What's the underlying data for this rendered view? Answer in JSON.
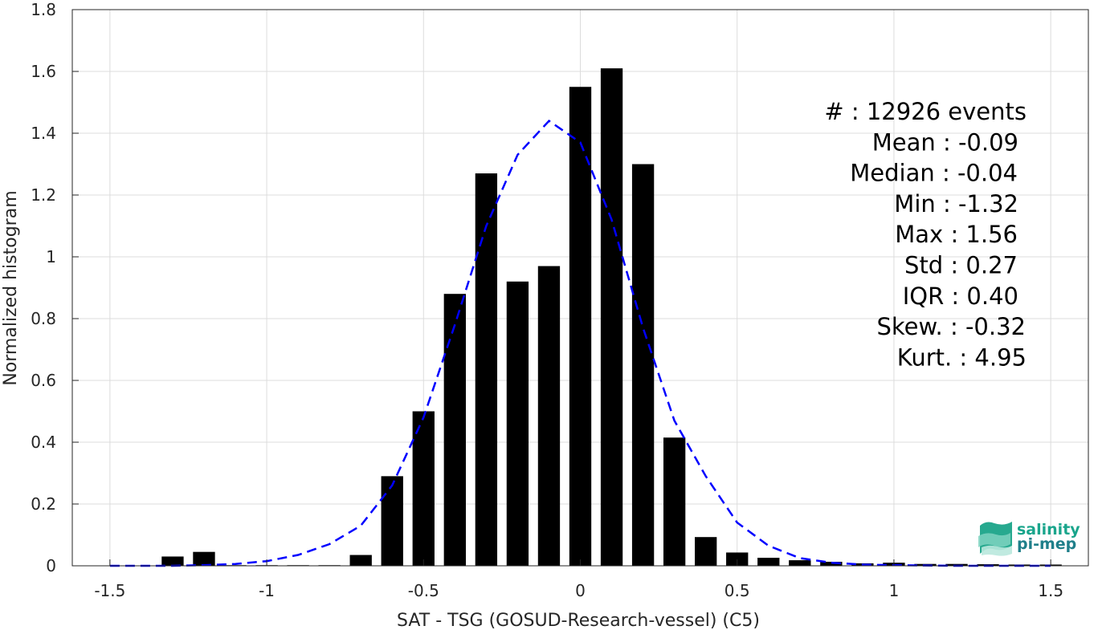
{
  "chart_data": {
    "type": "bar",
    "xlabel": "SAT - TSG (GOSUD-Research-vessel) (C5)",
    "ylabel": "Normalized histogram",
    "xlim": [
      -1.62,
      1.62
    ],
    "ylim": [
      0,
      1.8
    ],
    "xticks": [
      -1.5,
      -1,
      -0.5,
      0,
      0.5,
      1,
      1.5
    ],
    "xtick_labels": [
      "-1.5",
      "-1",
      "-0.5",
      "0",
      "0.5",
      "1",
      "1.5"
    ],
    "yticks": [
      0,
      0.2,
      0.4,
      0.6,
      0.8,
      1,
      1.2,
      1.4,
      1.6,
      1.8
    ],
    "ytick_labels": [
      "0",
      "0.2",
      "0.4",
      "0.6",
      "0.8",
      "1",
      "1.2",
      "1.4",
      "1.6",
      "1.8"
    ],
    "grid": true,
    "series": [
      {
        "kind": "bar",
        "color": "#000000",
        "x": [
          -1.3,
          -1.2,
          -1.1,
          -1.0,
          -0.9,
          -0.8,
          -0.7,
          -0.6,
          -0.5,
          -0.4,
          -0.3,
          -0.2,
          -0.1,
          0.0,
          0.1,
          0.2,
          0.3,
          0.4,
          0.5,
          0.6,
          0.7,
          0.8,
          0.9,
          1.0,
          1.1,
          1.2,
          1.3,
          1.4,
          1.5
        ],
        "values": [
          0.03,
          0.045,
          0.002,
          0.002,
          0.002,
          0.002,
          0.035,
          0.29,
          0.5,
          0.88,
          1.27,
          0.92,
          0.97,
          1.55,
          1.61,
          1.3,
          0.415,
          0.093,
          0.043,
          0.026,
          0.018,
          0.013,
          0.008,
          0.01,
          0.006,
          0.006,
          0.005,
          0.004,
          0.004
        ]
      },
      {
        "kind": "line",
        "style": "dashed",
        "color": "#0000ff",
        "x": [
          -1.5,
          -1.4,
          -1.3,
          -1.2,
          -1.1,
          -1.0,
          -0.9,
          -0.8,
          -0.7,
          -0.6,
          -0.5,
          -0.4,
          -0.3,
          -0.2,
          -0.1,
          0.0,
          0.1,
          0.2,
          0.3,
          0.4,
          0.5,
          0.6,
          0.7,
          0.8,
          0.9,
          1.0,
          1.1,
          1.2,
          1.3,
          1.4,
          1.5
        ],
        "values": [
          0.0,
          0.0,
          0.0,
          0.002,
          0.006,
          0.015,
          0.035,
          0.07,
          0.13,
          0.26,
          0.48,
          0.78,
          1.1,
          1.33,
          1.44,
          1.37,
          1.12,
          0.77,
          0.47,
          0.29,
          0.14,
          0.065,
          0.025,
          0.01,
          0.004,
          0.002,
          0.001,
          0.0,
          0.0,
          0.0,
          0.0
        ]
      }
    ],
    "annotations": [
      "#  : 12926 events",
      "Mean : -0.09",
      "Median : -0.04",
      "Min : -1.32",
      "Max : 1.56",
      "Std : 0.27",
      "IQR : 0.40",
      "Skew. : -0.32",
      "Kurt. : 4.95"
    ]
  },
  "logo": {
    "line1": "salinity",
    "line2": "pi-mep",
    "color": "#1aa58c"
  }
}
